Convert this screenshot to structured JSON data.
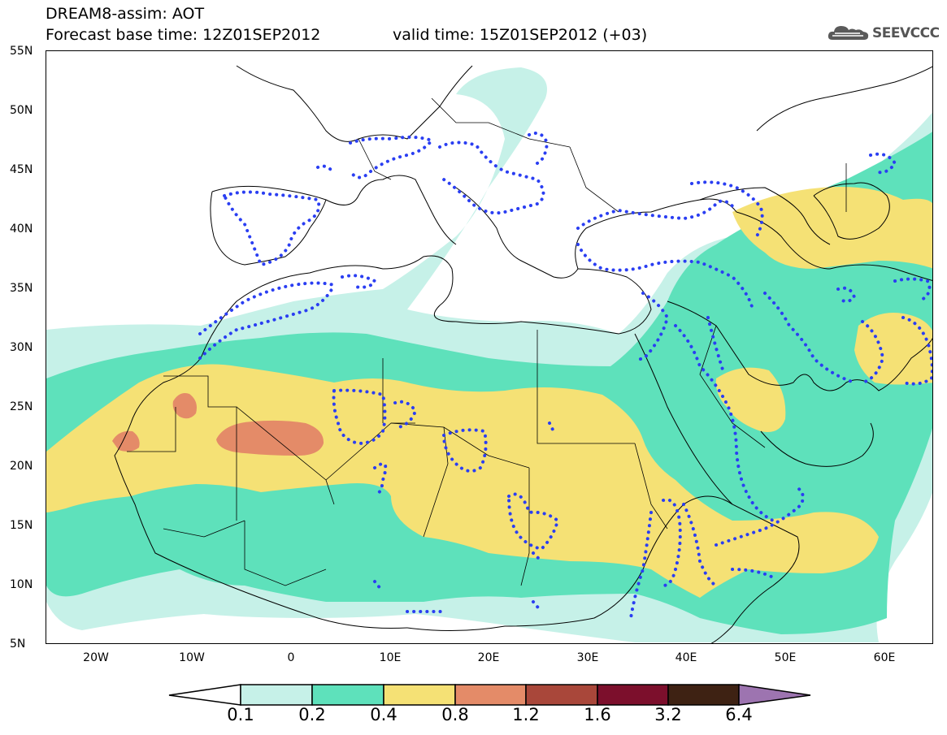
{
  "header": {
    "title": "DREAM8-assim: AOT",
    "base_time": "Forecast base time: 12Z01SEP2012",
    "valid_time": "valid time: 15Z01SEP2012 (+03)"
  },
  "logo": {
    "text": "SEEVCCC",
    "icon": "cloud-icon"
  },
  "map": {
    "lat_labels": [
      "55N",
      "50N",
      "45N",
      "40N",
      "35N",
      "30N",
      "25N",
      "20N",
      "15N",
      "10N",
      "5N"
    ],
    "lon_labels": [
      "20W",
      "10W",
      "0",
      "10E",
      "20E",
      "30E",
      "40E",
      "50E",
      "60E"
    ],
    "lat_range": [
      5,
      55
    ],
    "lon_range": [
      -25,
      65
    ]
  },
  "legend": {
    "thresholds": [
      "0.1",
      "0.2",
      "0.4",
      "0.8",
      "1.2",
      "1.6",
      "3.2",
      "6.4"
    ],
    "colors": [
      "#ffffff",
      "#c6f1e8",
      "#5ee1bb",
      "#f5e175",
      "#e48b68",
      "#a9473a",
      "#7c0f2c",
      "#3e2213",
      "#9d74b0"
    ]
  },
  "colors": {
    "aot_0_1": "#c6f1e8",
    "aot_0_2": "#5ee1bb",
    "aot_0_4": "#f5e175",
    "aot_0_8": "#e48b68",
    "precip_dots": "#2a3ef2"
  }
}
